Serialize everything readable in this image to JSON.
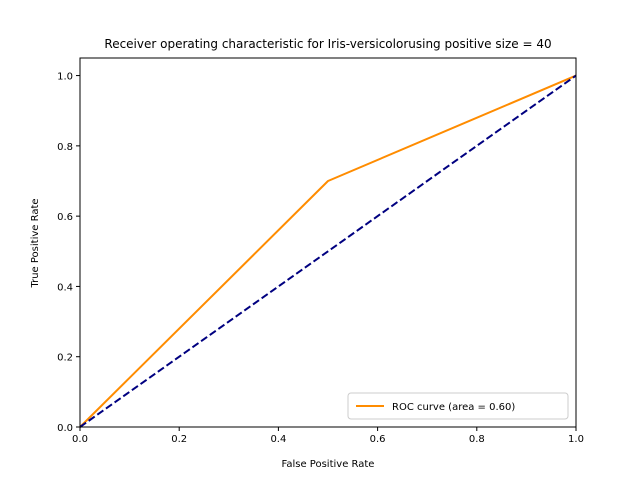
{
  "chart_data": {
    "type": "line",
    "title": "Receiver operating characteristic for Iris-versicolorusing positive size = 40",
    "xlabel": "False Positive Rate",
    "ylabel": "True Positive Rate",
    "xlim": [
      0.0,
      1.0
    ],
    "ylim": [
      0.0,
      1.05
    ],
    "xticks": [
      0.0,
      0.2,
      0.4,
      0.6,
      0.8,
      1.0
    ],
    "yticks": [
      0.0,
      0.2,
      0.4,
      0.6,
      0.8,
      1.0
    ],
    "xtick_labels": [
      "0.0",
      "0.2",
      "0.4",
      "0.6",
      "0.8",
      "1.0"
    ],
    "ytick_labels": [
      "0.0",
      "0.2",
      "0.4",
      "0.6",
      "0.8",
      "1.0"
    ],
    "grid": false,
    "legend_position": "lower-right",
    "series": [
      {
        "name": "ROC curve (area = 0.60)",
        "color": "#ff8c00",
        "style": "solid",
        "x": [
          0.0,
          0.5,
          1.0
        ],
        "y": [
          0.0,
          0.7,
          1.0
        ]
      },
      {
        "color": "#000080",
        "style": "dashed",
        "x": [
          0.0,
          1.0
        ],
        "y": [
          0.0,
          1.0
        ]
      }
    ]
  }
}
